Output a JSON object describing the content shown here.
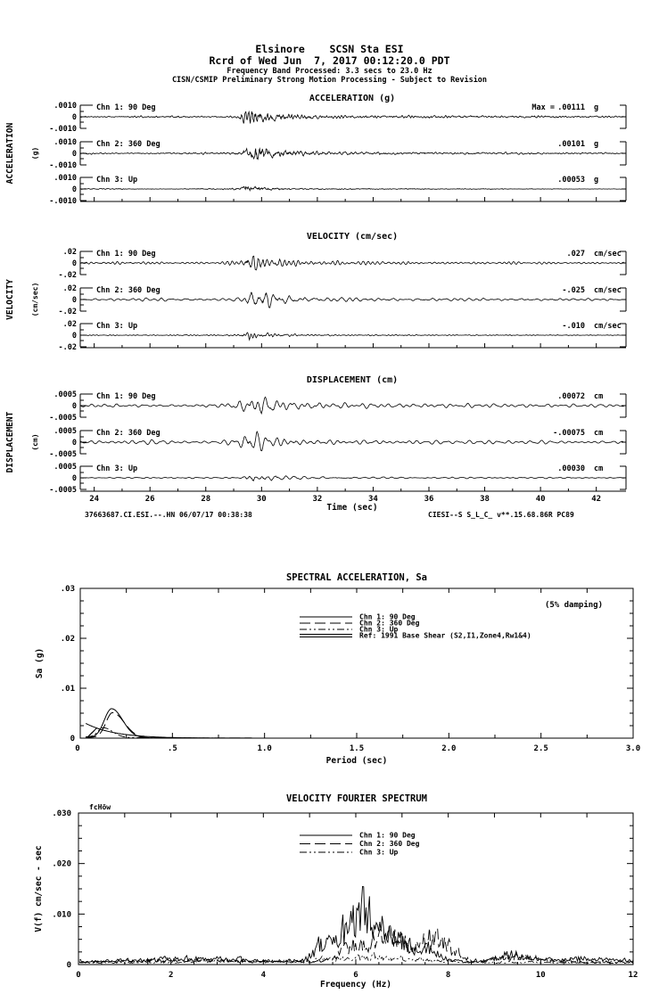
{
  "header": {
    "station_line": "Elsinore    SCSN Sta ESI",
    "record_line": "Rcrd of Wed Jun  7, 2017 00:12:20.0 PDT",
    "band_line": "Frequency Band Processed: 3.3 secs to 23.0 Hz",
    "notice_line": "CISN/CSMIP Preliminary Strong Motion Processing - Subject to Revision"
  },
  "timeseries_sections": [
    {
      "id": "acceleration",
      "title": "ACCELERATION (g)",
      "side_label": "ACCELERATION",
      "side_unit": "(g)",
      "y_ticks": [
        ".0010",
        "0",
        "-.0010"
      ],
      "channels": [
        {
          "label": "Chn 1: 90 Deg",
          "max_prefix": "Max =",
          "max_value": ".00111",
          "max_unit": "g"
        },
        {
          "label": "Chn 2: 360 Deg",
          "max_value": ".00101",
          "max_unit": "g"
        },
        {
          "label": "Chn 3: Up",
          "max_value": ".00053",
          "max_unit": "g"
        }
      ]
    },
    {
      "id": "velocity",
      "title": "VELOCITY (cm/sec)",
      "side_label": "VELOCITY",
      "side_unit": "(cm/sec)",
      "y_ticks": [
        ".02",
        "0",
        "-.02"
      ],
      "channels": [
        {
          "label": "Chn 1: 90 Deg",
          "max_value": ".027",
          "max_unit": "cm/sec"
        },
        {
          "label": "Chn 2: 360 Deg",
          "max_value": "-.025",
          "max_unit": "cm/sec"
        },
        {
          "label": "Chn 3: Up",
          "max_value": "-.010",
          "max_unit": "cm/sec"
        }
      ]
    },
    {
      "id": "displacement",
      "title": "DISPLACEMENT (cm)",
      "side_label": "DISPLACEMENT",
      "side_unit": "(cm)",
      "y_ticks": [
        ".0005",
        "0",
        "-.0005"
      ],
      "channels": [
        {
          "label": "Chn 1: 90 Deg",
          "max_value": ".00072",
          "max_unit": "cm"
        },
        {
          "label": "Chn 2: 360 Deg",
          "max_value": "-.00075",
          "max_unit": "cm"
        },
        {
          "label": "Chn 3: Up",
          "max_value": ".00030",
          "max_unit": "cm"
        }
      ]
    }
  ],
  "time_axis": {
    "ticks": [
      "24",
      "26",
      "28",
      "30",
      "32",
      "34",
      "36",
      "38",
      "40",
      "42"
    ],
    "label": "Time (sec)"
  },
  "footer": {
    "left": "37663687.CI.ESI.--.HN 06/07/17 00:38:38",
    "right": "CIESI--S  S_L_C_  v**.15.68.86R PC89"
  },
  "sa_plot": {
    "title": "SPECTRAL ACCELERATION, Sa",
    "damping_note": "(5% damping)",
    "ylabel": "Sa (g)",
    "xlabel": "Period (sec)",
    "y_ticks": [
      ".03",
      ".02",
      ".01",
      "0"
    ],
    "x_ticks": [
      "0",
      ".5",
      "1.0",
      "1.5",
      "2.0",
      "2.5",
      "3.0"
    ],
    "legend": [
      {
        "label": "Chn 1: 90 Deg",
        "style": "solid"
      },
      {
        "label": "Chn 2: 360 Deg",
        "style": "longdash"
      },
      {
        "label": "Chn 3: Up",
        "style": "dashdot"
      },
      {
        "label": "Ref: 1991 Base Shear (S2,I1,Zone4,Rw1&4)",
        "style": "double"
      }
    ]
  },
  "fourier_plot": {
    "title": "VELOCITY FOURIER SPECTRUM",
    "corner_note": "fcHöw",
    "ylabel": "V(f)  cm/sec - sec",
    "xlabel": "Frequency (Hz)",
    "y_ticks": [
      ".030",
      ".020",
      ".010",
      "0"
    ],
    "x_ticks": [
      "0",
      "2",
      "4",
      "6",
      "8",
      "10",
      "12"
    ],
    "legend": [
      {
        "label": "Chn 1: 90 Deg",
        "style": "solid"
      },
      {
        "label": "Chn 2: 360 Deg",
        "style": "longdash"
      },
      {
        "label": "Chn 3: Up",
        "style": "dashdot"
      }
    ]
  },
  "colors": {
    "ink": "#000000",
    "background": "#ffffff"
  },
  "chart_data": [
    {
      "type": "line",
      "id": "acceleration_timeseries",
      "title": "ACCELERATION (g)",
      "xlabel": "Time (sec)",
      "x_range_sec": [
        23.5,
        43.0
      ],
      "ylim": [
        -0.001,
        0.001
      ],
      "event_onset_sec": 29.2,
      "series": [
        {
          "name": "Chn 1: 90 Deg",
          "peak_value": 0.00111,
          "unit": "g"
        },
        {
          "name": "Chn 2: 360 Deg",
          "peak_value": 0.00101,
          "unit": "g"
        },
        {
          "name": "Chn 3: Up",
          "peak_value": 0.00053,
          "unit": "g"
        }
      ]
    },
    {
      "type": "line",
      "id": "velocity_timeseries",
      "title": "VELOCITY (cm/sec)",
      "xlabel": "Time (sec)",
      "x_range_sec": [
        23.5,
        43.0
      ],
      "ylim": [
        -0.02,
        0.02
      ],
      "event_onset_sec": 29.2,
      "series": [
        {
          "name": "Chn 1: 90 Deg",
          "peak_value": 0.027,
          "unit": "cm/sec"
        },
        {
          "name": "Chn 2: 360 Deg",
          "peak_value": -0.025,
          "unit": "cm/sec"
        },
        {
          "name": "Chn 3: Up",
          "peak_value": -0.01,
          "unit": "cm/sec"
        }
      ]
    },
    {
      "type": "line",
      "id": "displacement_timeseries",
      "title": "DISPLACEMENT (cm)",
      "xlabel": "Time (sec)",
      "x_range_sec": [
        23.5,
        43.0
      ],
      "ylim": [
        -0.0005,
        0.0005
      ],
      "event_onset_sec": 29.2,
      "series": [
        {
          "name": "Chn 1: 90 Deg",
          "peak_value": 0.00072,
          "unit": "cm"
        },
        {
          "name": "Chn 2: 360 Deg",
          "peak_value": -0.00075,
          "unit": "cm"
        },
        {
          "name": "Chn 3: Up",
          "peak_value": 0.0003,
          "unit": "cm"
        }
      ]
    },
    {
      "type": "line",
      "id": "spectral_acceleration",
      "title": "SPECTRAL ACCELERATION, Sa",
      "xlabel": "Period (sec)",
      "ylabel": "Sa (g)",
      "xlim": [
        0,
        3.0
      ],
      "ylim": [
        0,
        0.03
      ],
      "damping": "5%",
      "x_tick_values": [
        0,
        0.5,
        1.0,
        1.5,
        2.0,
        2.5,
        3.0
      ],
      "y_tick_values": [
        0,
        0.01,
        0.02,
        0.03
      ],
      "legend_position": "upper center",
      "series": [
        {
          "name": "Chn 1: 90 Deg",
          "peak_period_sec": 0.17,
          "peak_sa_g": 0.0058
        },
        {
          "name": "Chn 2: 360 Deg",
          "peak_period_sec": 0.175,
          "peak_sa_g": 0.005
        },
        {
          "name": "Chn 3: Up",
          "peak_period_sec": 0.125,
          "peak_sa_g": 0.0019
        },
        {
          "name": "Ref: 1991 Base Shear (S2,I1,Zone4,Rw1&4)",
          "shape": "smooth decay from ~0.003 at 0.05 sec to ~0 by 0.7 sec"
        }
      ],
      "note": "all curves near zero beyond ~0.7 sec"
    },
    {
      "type": "line",
      "id": "velocity_fourier_spectrum",
      "title": "VELOCITY FOURIER SPECTRUM",
      "xlabel": "Frequency (Hz)",
      "ylabel": "V(f) cm/sec - sec",
      "xlim": [
        0,
        12
      ],
      "ylim": [
        0,
        0.03
      ],
      "x_tick_values": [
        0,
        2,
        4,
        6,
        8,
        10,
        12
      ],
      "y_tick_values": [
        0,
        0.01,
        0.02,
        0.03
      ],
      "legend_position": "upper right",
      "series": [
        {
          "name": "Chn 1: 90 Deg",
          "dominant_band_hz": [
            5,
            8
          ],
          "peak_hz": 6.2,
          "peak_value": 0.019
        },
        {
          "name": "Chn 2: 360 Deg",
          "dominant_band_hz": [
            5.5,
            8
          ],
          "peak_hz": 6.8,
          "peak_value": 0.013
        },
        {
          "name": "Chn 3: Up",
          "peak_hz": 6.5,
          "peak_value": 0.003
        }
      ],
      "note": "low-level jagged noise below 4.5 Hz and above 8.5 Hz"
    }
  ]
}
